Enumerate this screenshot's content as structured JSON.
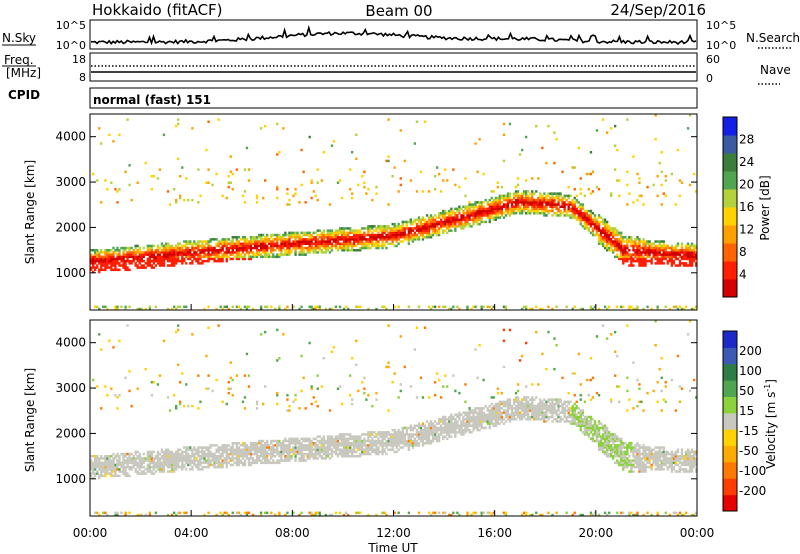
{
  "header": {
    "station": "Hokkaido (fitACF)",
    "beam": "Beam 00",
    "date": "24/Sep/2016"
  },
  "nsky_panel": {
    "left_label": "N.Sky",
    "left_ticks": [
      "10^5",
      "10^0"
    ],
    "right_ticks": [
      "10^5",
      "10^0"
    ],
    "right_label": "N.Search"
  },
  "freq_panel": {
    "label_line1": "Freq.",
    "label_line2": "[MHz]",
    "left_ticks": [
      "18",
      "8"
    ],
    "right_ticks": [
      "60",
      "0"
    ],
    "right_label": "Nave"
  },
  "cpid_panel": {
    "label": "CPID",
    "mode": "normal (fast) 151"
  },
  "chart_data": [
    {
      "type": "heatmap",
      "name": "power",
      "ylabel": "Slant Range [km]",
      "ylim": [
        180,
        4500
      ],
      "y_ticks": [
        "1000",
        "2000",
        "3000",
        "4000"
      ],
      "colorbar_label": "Power [dB]",
      "colorbar_ticks": [
        "4",
        "8",
        "12",
        "16",
        "20",
        "24",
        "28"
      ],
      "colorbar_colors": [
        "#1520e6",
        "#3c5aa0",
        "#3c7d3c",
        "#4fa550",
        "#b4d23c",
        "#ffd200",
        "#ffa000",
        "#ff6400",
        "#ff1e00",
        "#d20000"
      ]
    },
    {
      "type": "heatmap",
      "name": "velocity",
      "xlabel": "Time UT",
      "ylabel": "Slant Range [km]",
      "ylim": [
        180,
        4500
      ],
      "y_ticks": [
        "1000",
        "2000",
        "3000",
        "4000"
      ],
      "x_ticks": [
        "00:00",
        "04:00",
        "08:00",
        "12:00",
        "16:00",
        "20:00",
        "00:00"
      ],
      "colorbar_label_main": "Velocity [m s",
      "colorbar_label_sup": "-1",
      "colorbar_label_end": "]",
      "colorbar_ticks": [
        "200",
        "100",
        "50",
        "15",
        "-15",
        "-50",
        "-100",
        "-200"
      ],
      "colorbar_colors": [
        "#1e28c8",
        "#3c5ab4",
        "#2d7d46",
        "#50a550",
        "#8cd23c",
        "#c8c8be",
        "#ffd200",
        "#ffaa00",
        "#ff7800",
        "#ff3c00",
        "#e60000"
      ]
    }
  ]
}
